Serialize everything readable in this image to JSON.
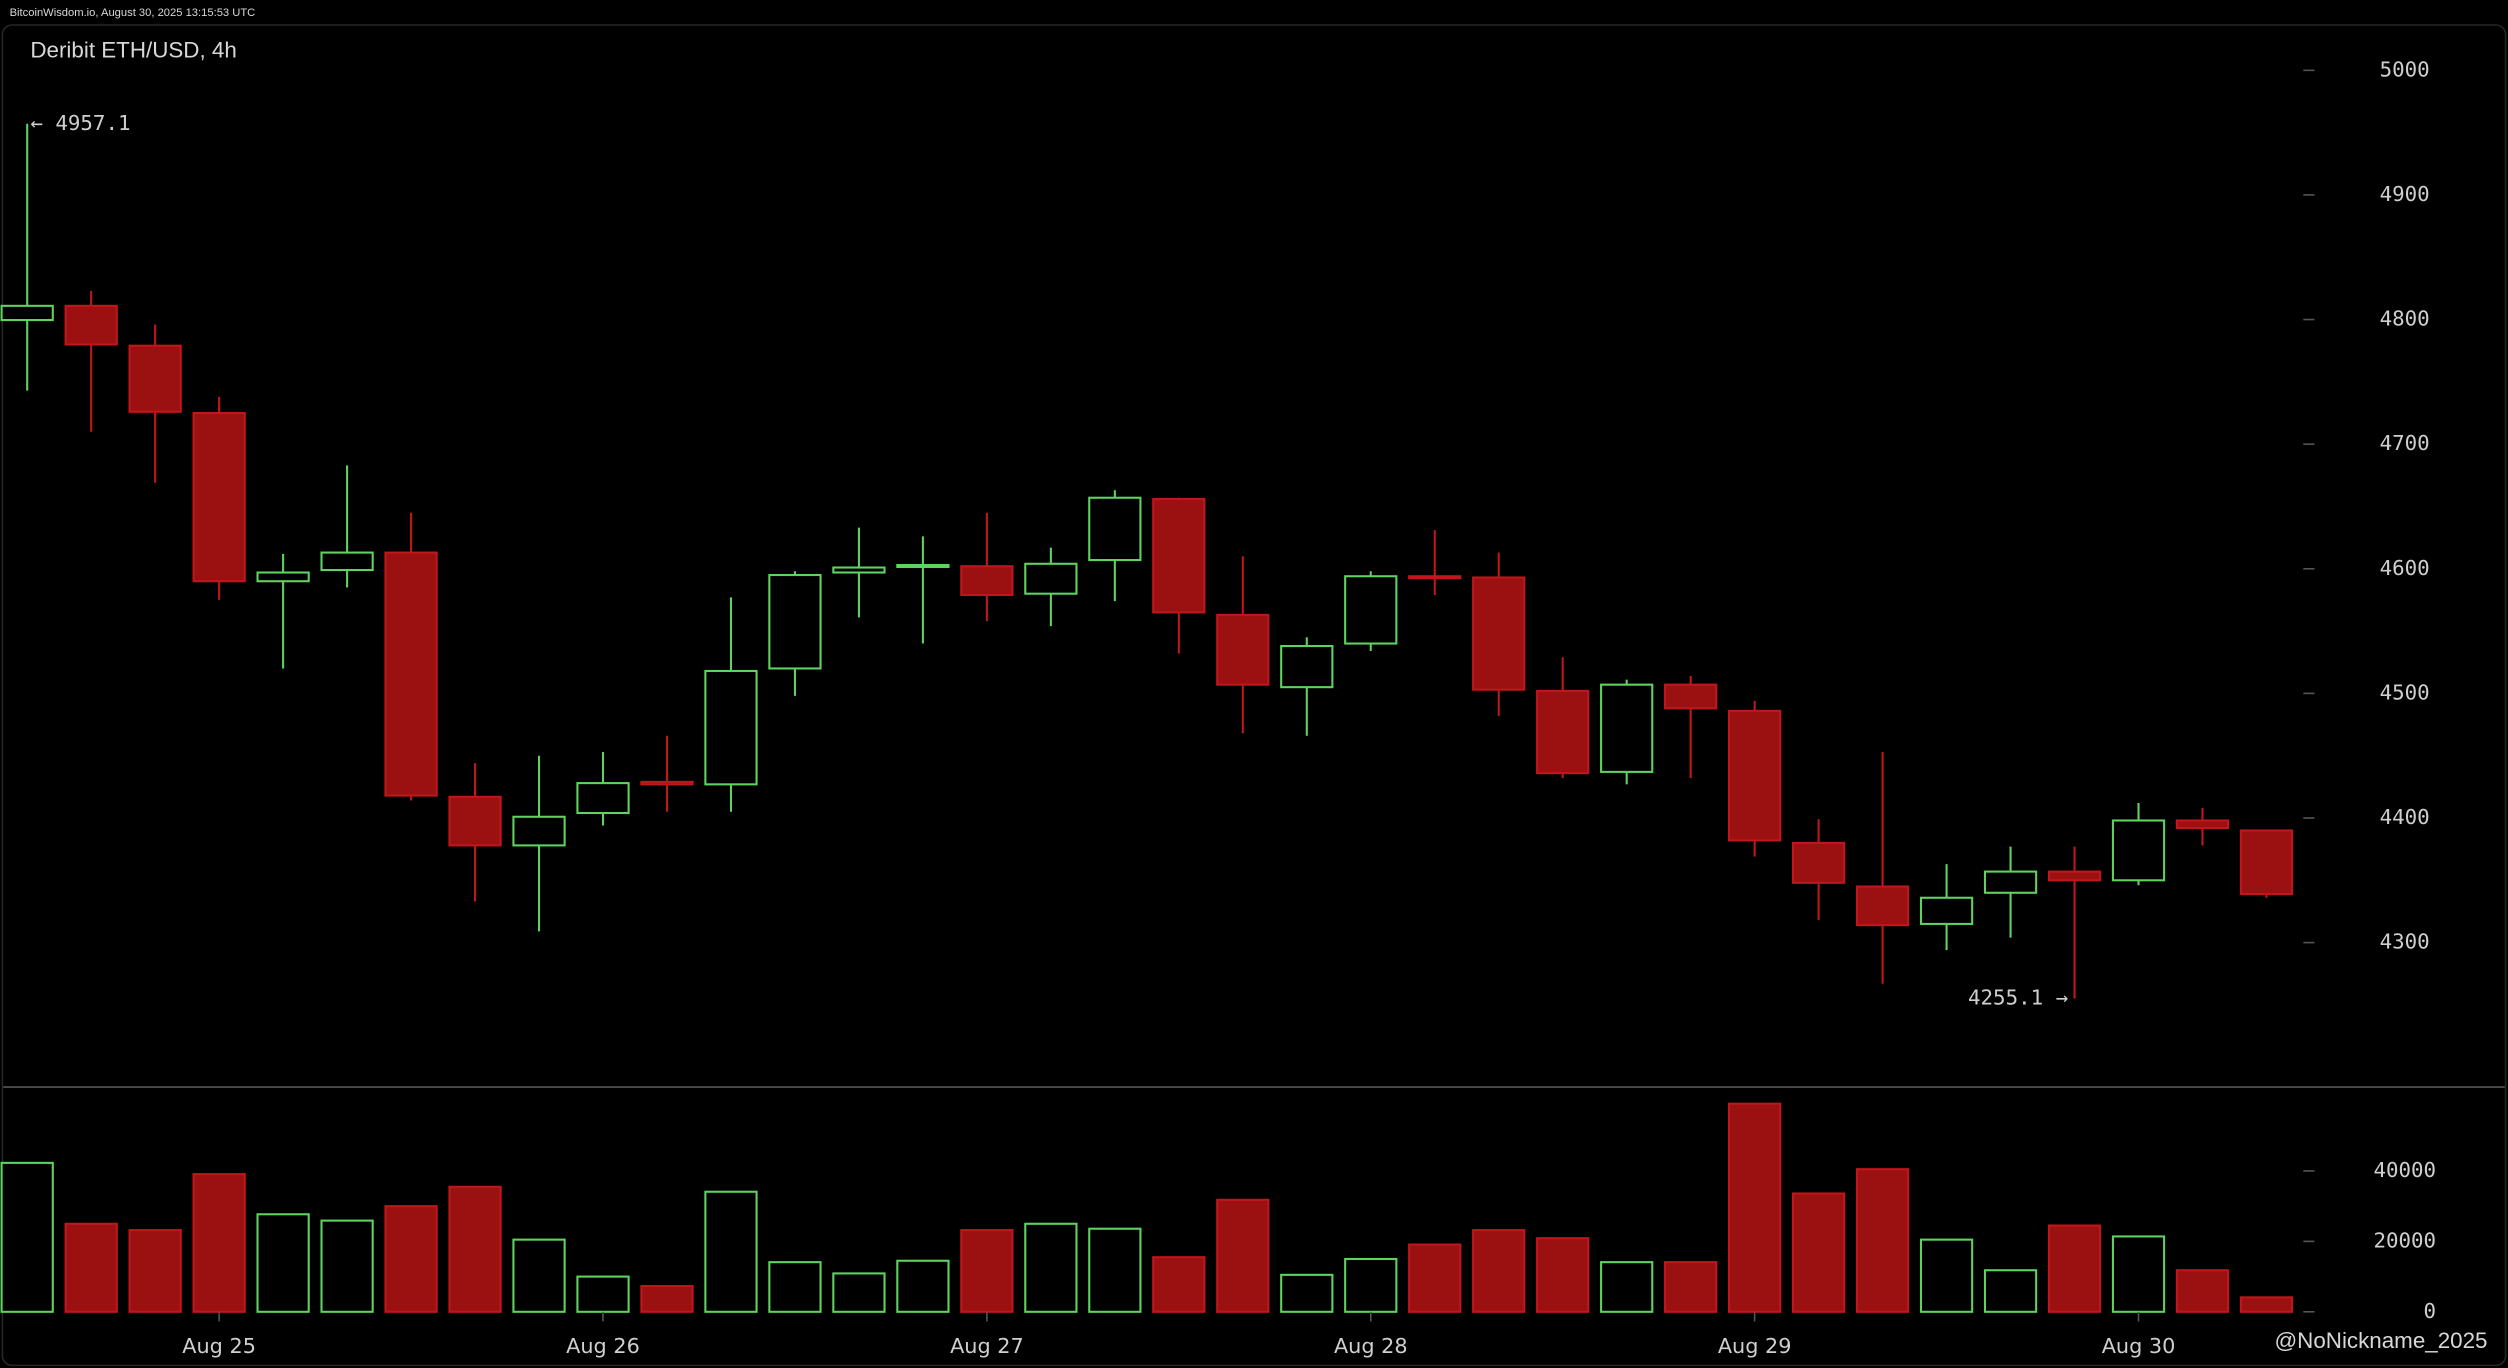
{
  "header": "BitcoinWisdom.io, August 30, 2025 13:15:53 UTC",
  "watermark": "@NoNickname_2025",
  "chart_data": {
    "type": "candlestick",
    "title": "Deribit ETH/USD, 4h",
    "categories": [
      null,
      null,
      null,
      "Aug 25",
      null,
      null,
      null,
      null,
      null,
      "Aug 26",
      null,
      null,
      null,
      null,
      null,
      "Aug 27",
      null,
      null,
      null,
      null,
      null,
      "Aug 28",
      null,
      null,
      null,
      null,
      null,
      "Aug 29",
      null,
      null,
      null,
      null,
      null,
      "Aug 30",
      null,
      null
    ],
    "open": [
      4799.6,
      4811,
      4779,
      4725,
      4590,
      4599,
      4613,
      4417,
      4378,
      4404,
      4429,
      4427,
      4520,
      4597,
      4602,
      4602,
      4580,
      4607,
      4656,
      4563,
      4505,
      4540,
      4594,
      4593,
      4502,
      4437,
      4507,
      4486,
      4380,
      4345,
      4315,
      4340,
      4357,
      4350,
      4398,
      4390
    ],
    "high": [
      4957.1,
      4823,
      4796,
      4738,
      4612,
      4683,
      4645,
      4444,
      4450,
      4453,
      4466,
      4577,
      4598,
      4633,
      4626,
      4645,
      4617,
      4663,
      4657,
      4610,
      4545,
      4598,
      4631,
      4613,
      4529,
      4511,
      4514,
      4494,
      4399,
      4453,
      4363,
      4377,
      4377,
      4412,
      4408,
      4390
    ],
    "low": [
      4743,
      4710,
      4669,
      4575,
      4520,
      4585,
      4414,
      4333,
      4309,
      4394,
      4405,
      4405,
      4498,
      4561,
      4540,
      4558,
      4554,
      4574,
      4532,
      4468,
      4466,
      4534,
      4579,
      4482,
      4432,
      4427,
      4432,
      4369,
      4318,
      4267,
      4294,
      4304,
      4255.1,
      4346,
      4378,
      4336
    ],
    "close": [
      4811,
      4780,
      4726,
      4590,
      4597,
      4613,
      4418,
      4378,
      4401,
      4428,
      4427,
      4518,
      4595,
      4601,
      4603,
      4579,
      4604,
      4657,
      4565,
      4507,
      4538,
      4594,
      4593,
      4503,
      4436,
      4507,
      4488,
      4382,
      4348,
      4314,
      4336,
      4357,
      4350,
      4398,
      4392,
      4339
    ],
    "volume": [
      42300,
      25000,
      23200,
      39100,
      27700,
      25900,
      30000,
      35500,
      20500,
      10000,
      7300,
      34100,
      14100,
      10900,
      14500,
      23200,
      25000,
      23600,
      15500,
      31800,
      10500,
      15000,
      19100,
      23200,
      20900,
      14100,
      14100,
      59100,
      33600,
      40500,
      20500,
      11800,
      24500,
      21400,
      11800,
      4100
    ],
    "ylim": [
      4186,
      5037
    ],
    "yticks": [
      4300,
      4400,
      4500,
      4600,
      4700,
      4800,
      4900,
      5000
    ],
    "volume_ylim": [
      0,
      63600
    ],
    "volume_yticks": [
      0,
      20000,
      40000
    ],
    "up_color": "#5fd35f",
    "down_color": "#c0171d",
    "annotations": {
      "max": "← 4957.1",
      "min": "4255.1 →"
    }
  }
}
